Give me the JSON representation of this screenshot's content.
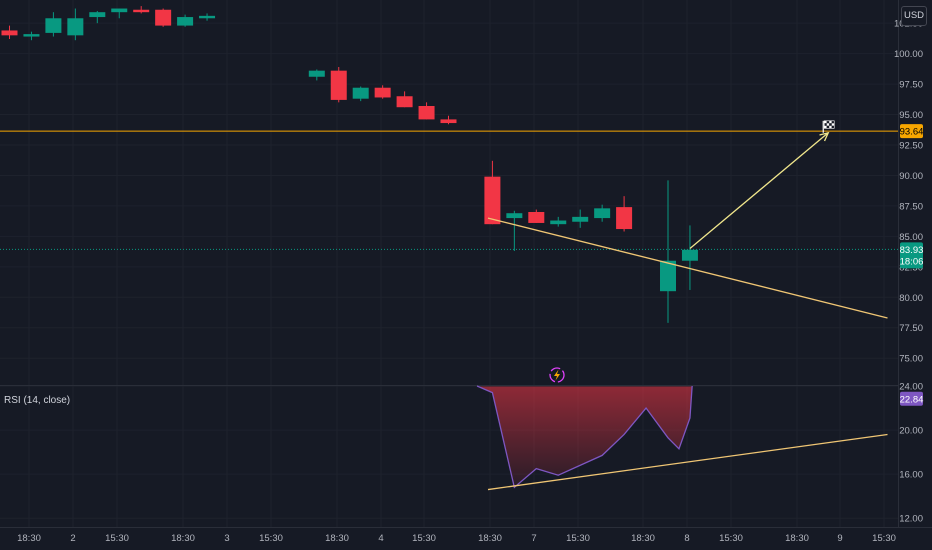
{
  "currency_button": "USD",
  "chart_data": [
    {
      "type": "candlestick",
      "price_labels": [
        "102.50",
        "100.00",
        "97.50",
        "95.00",
        "92.50",
        "90.00",
        "87.50",
        "85.00",
        "82.50",
        "80.00",
        "77.50",
        "75.00"
      ],
      "ylim": [
        72.8,
        104.4
      ],
      "time_labels": [
        "18:30",
        "2",
        "15:30",
        "18:30",
        "3",
        "15:30",
        "18:30",
        "4",
        "15:30",
        "18:30",
        "7",
        "15:30",
        "18:30",
        "8",
        "15:30",
        "18:30",
        "9",
        "15:30"
      ],
      "candles": [
        {
          "o": 101.9,
          "h": 102.3,
          "l": 101.2,
          "c": 101.5
        },
        {
          "o": 101.4,
          "h": 101.8,
          "l": 101.1,
          "c": 101.6
        },
        {
          "o": 101.7,
          "h": 103.4,
          "l": 101.4,
          "c": 102.9
        },
        {
          "o": 101.5,
          "h": 103.7,
          "l": 101.1,
          "c": 102.9
        },
        {
          "o": 103.0,
          "h": 103.5,
          "l": 102.5,
          "c": 103.4
        },
        {
          "o": 103.4,
          "h": 103.7,
          "l": 102.9,
          "c": 103.7
        },
        {
          "o": 103.6,
          "h": 103.9,
          "l": 103.3,
          "c": 103.4
        },
        {
          "o": 103.6,
          "h": 103.7,
          "l": 102.2,
          "c": 102.3
        },
        {
          "o": 102.3,
          "h": 103.2,
          "l": 102.2,
          "c": 103.0
        },
        {
          "o": 102.9,
          "h": 103.3,
          "l": 102.7,
          "c": 103.1
        },
        null,
        null,
        null,
        null,
        {
          "o": 98.1,
          "h": 98.7,
          "l": 97.8,
          "c": 98.6
        },
        {
          "o": 98.6,
          "h": 98.9,
          "l": 96.0,
          "c": 96.2
        },
        {
          "o": 96.3,
          "h": 97.3,
          "l": 96.1,
          "c": 97.2
        },
        {
          "o": 97.2,
          "h": 97.4,
          "l": 96.3,
          "c": 96.4
        },
        {
          "o": 96.5,
          "h": 96.9,
          "l": 95.6,
          "c": 95.6
        },
        {
          "o": 95.7,
          "h": 96.0,
          "l": 94.6,
          "c": 94.6
        },
        {
          "o": 94.6,
          "h": 94.9,
          "l": 94.2,
          "c": 94.3
        },
        null,
        {
          "o": 89.9,
          "h": 91.2,
          "l": 86.0,
          "c": 86.0
        },
        {
          "o": 86.5,
          "h": 87.1,
          "l": 83.8,
          "c": 86.9
        },
        {
          "o": 87.0,
          "h": 87.2,
          "l": 86.1,
          "c": 86.1
        },
        {
          "o": 86.0,
          "h": 86.6,
          "l": 85.8,
          "c": 86.3
        },
        {
          "o": 86.2,
          "h": 87.2,
          "l": 85.7,
          "c": 86.6
        },
        {
          "o": 86.5,
          "h": 87.6,
          "l": 86.2,
          "c": 87.3
        },
        {
          "o": 87.4,
          "h": 88.3,
          "l": 85.4,
          "c": 85.6
        },
        null,
        {
          "o": 80.5,
          "h": 89.6,
          "l": 77.9,
          "c": 83.0
        },
        {
          "o": 83.0,
          "h": 85.9,
          "l": 80.6,
          "c": 83.9
        }
      ],
      "current_price": {
        "value": "83.93",
        "time": "18:06",
        "color": "#089981"
      },
      "horizontal_level": {
        "value": 93.64,
        "label": "93.64",
        "color": "#f7a600"
      },
      "projection": {
        "from_candle": 31,
        "from_price": 84.0,
        "to_candle": 37.3,
        "to_price": 93.5,
        "color": "#f0e68c",
        "icon": "checkered-flag-icon"
      },
      "trend_line": {
        "from_candle": 21.8,
        "from_price": 86.5,
        "to_candle": 40,
        "to_price": 78.3,
        "color": "#f0c674"
      },
      "up_color": "#089981",
      "down_color": "#f23645",
      "marker_icon": "lightning-dividend-icon"
    },
    {
      "type": "line",
      "title": "RSI (14, close)",
      "current_value": "22.84",
      "line_color": "#7e57c2",
      "tick_labels": [
        "24.00",
        "20.00",
        "16.00",
        "12.00"
      ],
      "ylim": [
        11.2,
        24.0
      ],
      "points": [
        [
          21.3,
          24.0
        ],
        [
          22.0,
          23.4
        ],
        [
          23.0,
          14.8
        ],
        [
          24.0,
          16.5
        ],
        [
          25.0,
          15.9
        ],
        [
          27.0,
          17.7
        ],
        [
          28.0,
          19.6
        ],
        [
          29.0,
          22.0
        ],
        [
          30.0,
          19.3
        ],
        [
          30.5,
          18.3
        ],
        [
          31.0,
          21.1
        ],
        [
          31.1,
          24.0
        ]
      ],
      "trend_line": {
        "from_candle": 21.8,
        "from_price": 14.6,
        "to_candle": 40,
        "to_price": 19.6,
        "color": "#f0c674"
      }
    }
  ]
}
